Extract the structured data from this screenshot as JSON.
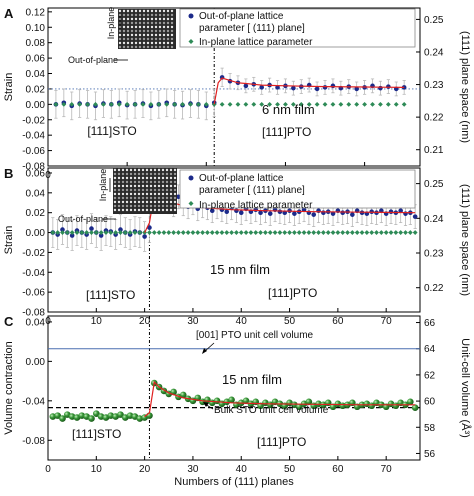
{
  "figure": {
    "panels": [
      {
        "letter": "A",
        "inset_labels": [
          "In-plane",
          "Out-of-plane"
        ],
        "annotations": [
          "[111]STO",
          "6 nm film",
          "[111]PTO"
        ]
      },
      {
        "letter": "B",
        "inset_labels": [
          "In-plane",
          "Out-of-plane"
        ],
        "annotations": [
          "[111]STO",
          "15 nm film",
          "[111]PTO"
        ]
      },
      {
        "letter": "C",
        "inset_labels": [],
        "annotations": [
          "[001] PTO unit cell volume",
          "15 nm film",
          "Bulk STO unit cell volume",
          "[111]STO",
          "[111]PTO"
        ]
      }
    ]
  },
  "chart_data": [
    {
      "type": "scatter",
      "xlabel": "",
      "ylabel": "Strain",
      "y2label": "(111) plane space (nm)",
      "xlim": [
        0,
        47
      ],
      "ylim": [
        -0.08,
        0.125
      ],
      "y2lim": [
        0.205,
        0.2535
      ],
      "xticks": [
        0,
        10,
        20,
        30,
        40
      ],
      "yticks": [
        -0.08,
        -0.06,
        -0.04,
        -0.02,
        0.0,
        0.02,
        0.04,
        0.06,
        0.08,
        0.1,
        0.12
      ],
      "ytick_labels": [
        "-0.08",
        "-0.06",
        "-0.04",
        "-0.02",
        "0.00",
        "0.02",
        "0.04",
        "0.06",
        "0.08",
        "0.10",
        "0.12"
      ],
      "y2ticks": [
        0.21,
        0.22,
        0.23,
        0.24,
        0.25
      ],
      "y2tick_labels": [
        "0.21",
        "0.22",
        "0.23",
        "0.24",
        "0.25"
      ],
      "interface_x": 21,
      "reference_line_y": 0.02,
      "legend_position": "top-right",
      "series": [
        {
          "name": "Out-of-plane lattice parameter [ (111) plane]",
          "marker": "circle",
          "color": "#1c2a8a",
          "x": [
            1,
            2,
            3,
            4,
            5,
            6,
            7,
            8,
            9,
            10,
            11,
            12,
            13,
            14,
            15,
            16,
            17,
            18,
            19,
            20,
            21,
            22,
            23,
            24,
            25,
            26,
            27,
            28,
            29,
            30,
            31,
            32,
            33,
            34,
            35,
            36,
            37,
            38,
            39,
            40,
            41,
            42,
            43,
            44,
            45
          ],
          "values": [
            0.0,
            0.002,
            -0.002,
            0.001,
            0.0,
            -0.002,
            0.001,
            0.0,
            0.002,
            -0.001,
            0.0,
            0.001,
            -0.002,
            0.0,
            0.002,
            0.0,
            -0.001,
            0.001,
            0.0,
            -0.002,
            0.002,
            0.035,
            0.03,
            0.028,
            0.024,
            0.026,
            0.022,
            0.025,
            0.022,
            0.024,
            0.021,
            0.023,
            0.025,
            0.02,
            0.022,
            0.024,
            0.021,
            0.023,
            0.02,
            0.022,
            0.024,
            0.021,
            0.023,
            0.02,
            0.022
          ],
          "errors": [
            0.018,
            0.018,
            0.018,
            0.018,
            0.018,
            0.018,
            0.018,
            0.018,
            0.018,
            0.018,
            0.018,
            0.018,
            0.018,
            0.018,
            0.018,
            0.018,
            0.018,
            0.018,
            0.018,
            0.018,
            0.018,
            0.012,
            0.01,
            0.009,
            0.009,
            0.009,
            0.009,
            0.009,
            0.009,
            0.009,
            0.009,
            0.009,
            0.009,
            0.009,
            0.009,
            0.009,
            0.009,
            0.009,
            0.009,
            0.009,
            0.009,
            0.009,
            0.009,
            0.009,
            0.009
          ]
        },
        {
          "name": "In-plane lattice parameter",
          "marker": "diamond",
          "color": "#2e8b57",
          "x": [
            1,
            2,
            3,
            4,
            5,
            6,
            7,
            8,
            9,
            10,
            11,
            12,
            13,
            14,
            15,
            16,
            17,
            18,
            19,
            20,
            21,
            22,
            23,
            24,
            25,
            26,
            27,
            28,
            29,
            30,
            31,
            32,
            33,
            34,
            35,
            36,
            37,
            38,
            39,
            40,
            41,
            42,
            43,
            44,
            45
          ],
          "values": [
            0.0,
            0.0,
            0.0,
            0.0,
            0.0,
            0.0,
            0.0,
            0.0,
            0.0,
            0.0,
            0.0,
            0.0,
            0.0,
            0.0,
            0.0,
            0.0,
            0.0,
            0.0,
            0.0,
            0.0,
            0.0,
            0.0,
            0.0,
            0.0,
            0.0,
            0.0,
            0.0,
            0.0,
            0.0,
            0.0,
            0.0,
            0.0,
            0.0,
            0.0,
            0.0,
            0.0,
            0.0,
            0.0,
            0.0,
            0.0,
            0.0,
            0.0,
            0.0,
            0.0,
            0.0
          ]
        }
      ],
      "fit_curve": {
        "x": [
          21,
          21.5,
          22,
          23,
          24,
          25,
          27,
          30,
          35,
          40,
          45
        ],
        "values": [
          0.0,
          0.028,
          0.034,
          0.031,
          0.028,
          0.027,
          0.025,
          0.024,
          0.023,
          0.0225,
          0.022
        ]
      }
    },
    {
      "type": "scatter",
      "xlabel": "",
      "ylabel": "Strain",
      "y2label": "(111) plane space (nm)",
      "xlim": [
        0,
        77
      ],
      "ylim": [
        -0.08,
        0.065
      ],
      "y2lim": [
        0.213,
        0.2545
      ],
      "xticks": [
        0,
        10,
        20,
        30,
        40,
        50,
        60,
        70
      ],
      "yticks": [
        -0.08,
        -0.06,
        -0.04,
        -0.02,
        0.0,
        0.02,
        0.04,
        0.06
      ],
      "ytick_labels": [
        "-0.08",
        "-0.06",
        "-0.04",
        "-0.02",
        "0.00",
        "0.02",
        "0.04",
        "0.06"
      ],
      "y2ticks": [
        0.22,
        0.23,
        0.24,
        0.25
      ],
      "y2tick_labels": [
        "0.22",
        "0.23",
        "0.24",
        "0.25"
      ],
      "interface_x": 21,
      "legend_position": "top-right",
      "series": [
        {
          "name": "Out-of-plane lattice parameter [ (111) plane]",
          "marker": "circle",
          "color": "#1c2a8a",
          "x": [
            1,
            2,
            3,
            4,
            5,
            6,
            7,
            8,
            9,
            10,
            11,
            12,
            13,
            14,
            15,
            16,
            17,
            18,
            19,
            20,
            21,
            22,
            23,
            24,
            25,
            26,
            27,
            28,
            29,
            30,
            31,
            32,
            33,
            34,
            35,
            36,
            37,
            38,
            39,
            40,
            41,
            42,
            43,
            44,
            45,
            46,
            47,
            48,
            49,
            50,
            51,
            52,
            53,
            54,
            55,
            56,
            57,
            58,
            59,
            60,
            61,
            62,
            63,
            64,
            65,
            66,
            67,
            68,
            69,
            70,
            71,
            72,
            73,
            74,
            75,
            76
          ],
          "values": [
            0.0,
            -0.002,
            0.003,
            0.0,
            -0.003,
            0.002,
            0.0,
            -0.002,
            0.004,
            0.0,
            -0.003,
            0.002,
            0.001,
            -0.002,
            0.003,
            0.0,
            -0.002,
            0.001,
            0.0,
            -0.004,
            0.005,
            0.04,
            0.035,
            0.033,
            0.031,
            0.028,
            0.036,
            0.029,
            0.026,
            0.03,
            0.024,
            0.027,
            0.025,
            0.022,
            0.026,
            0.023,
            0.021,
            0.025,
            0.022,
            0.02,
            0.024,
            0.021,
            0.023,
            0.02,
            0.022,
            0.019,
            0.023,
            0.021,
            0.02,
            0.022,
            0.019,
            0.021,
            0.023,
            0.02,
            0.018,
            0.022,
            0.02,
            0.021,
            0.019,
            0.022,
            0.02,
            0.021,
            0.018,
            0.022,
            0.02,
            0.019,
            0.021,
            0.02,
            0.022,
            0.019,
            0.021,
            0.02,
            0.022,
            0.019,
            0.02,
            0.016
          ],
          "errors": [
            0.015,
            0.015,
            0.015,
            0.015,
            0.015,
            0.015,
            0.015,
            0.015,
            0.015,
            0.015,
            0.015,
            0.015,
            0.015,
            0.015,
            0.015,
            0.015,
            0.015,
            0.015,
            0.015,
            0.015,
            0.015,
            0.012,
            0.012,
            0.012,
            0.012,
            0.012,
            0.012,
            0.012,
            0.012,
            0.012,
            0.012,
            0.012,
            0.012,
            0.012,
            0.012,
            0.012,
            0.012,
            0.012,
            0.012,
            0.012,
            0.012,
            0.012,
            0.012,
            0.012,
            0.012,
            0.012,
            0.012,
            0.012,
            0.012,
            0.012,
            0.012,
            0.012,
            0.012,
            0.012,
            0.012,
            0.012,
            0.012,
            0.012,
            0.012,
            0.012,
            0.012,
            0.012,
            0.012,
            0.012,
            0.012,
            0.012,
            0.012,
            0.012,
            0.012,
            0.012,
            0.012,
            0.012,
            0.012,
            0.012,
            0.012,
            0.012
          ]
        },
        {
          "name": "In-plane lattice parameter",
          "marker": "diamond",
          "color": "#2e8b57",
          "x": [
            1,
            2,
            3,
            4,
            5,
            6,
            7,
            8,
            9,
            10,
            11,
            12,
            13,
            14,
            15,
            16,
            17,
            18,
            19,
            20,
            21,
            22,
            23,
            24,
            25,
            26,
            27,
            28,
            29,
            30,
            31,
            32,
            33,
            34,
            35,
            36,
            37,
            38,
            39,
            40,
            41,
            42,
            43,
            44,
            45,
            46,
            47,
            48,
            49,
            50,
            51,
            52,
            53,
            54,
            55,
            56,
            57,
            58,
            59,
            60,
            61,
            62,
            63,
            64,
            65,
            66,
            67,
            68,
            69,
            70,
            71,
            72,
            73,
            74,
            75,
            76
          ],
          "values": [
            0.0,
            0.0,
            0.0,
            0.0,
            0.0,
            0.0,
            0.0,
            0.0,
            0.0,
            0.0,
            0.0,
            0.0,
            0.0,
            0.0,
            0.0,
            0.0,
            0.0,
            0.0,
            0.0,
            0.0,
            0.0,
            0.0,
            0.0,
            0.0,
            0.0,
            0.0,
            0.0,
            0.0,
            0.0,
            0.0,
            0.0,
            0.0,
            0.0,
            0.0,
            0.0,
            0.0,
            0.0,
            0.0,
            0.0,
            0.0,
            0.0,
            0.0,
            0.0,
            0.0,
            0.0,
            0.0,
            0.0,
            0.0,
            0.0,
            0.0,
            0.0,
            0.0,
            0.0,
            0.0,
            0.0,
            0.0,
            0.0,
            0.0,
            0.0,
            0.0,
            0.0,
            0.0,
            0.0,
            0.0,
            0.0,
            0.0,
            0.0,
            0.0,
            0.0,
            0.0,
            0.0,
            0.0,
            0.0,
            0.0,
            0.0,
            0.0
          ]
        }
      ],
      "fit_curve": {
        "x": [
          20,
          21,
          22,
          23,
          25,
          28,
          32,
          38,
          45,
          55,
          65,
          76
        ],
        "values": [
          0.0,
          0.01,
          0.039,
          0.035,
          0.031,
          0.027,
          0.025,
          0.023,
          0.022,
          0.021,
          0.0205,
          0.02
        ]
      }
    },
    {
      "type": "scatter",
      "xlabel": "Numbers of (111) planes",
      "ylabel": "Volume contraction",
      "y2label": "Unit-cell volume (Å³)",
      "xlim": [
        0,
        77
      ],
      "ylim": [
        -0.1,
        0.046
      ],
      "y2lim": [
        55.5,
        66.5
      ],
      "xticks": [
        0,
        10,
        20,
        30,
        40,
        50,
        60,
        70
      ],
      "yticks": [
        -0.08,
        -0.04,
        0.0,
        0.04
      ],
      "ytick_labels": [
        "-0.08",
        "-0.04",
        "0.00",
        "0.04"
      ],
      "y2ticks": [
        56,
        58,
        60,
        62,
        64,
        66
      ],
      "y2tick_labels": [
        "56",
        "58",
        "60",
        "62",
        "64",
        "66"
      ],
      "interface_x": 21,
      "reference_lines": [
        {
          "label": "[001] PTO unit cell volume",
          "y2": 64.0
        },
        {
          "label": "Bulk STO unit cell volume",
          "y2": 59.5
        }
      ],
      "series": [
        {
          "name": "",
          "marker": "sphere",
          "color": "#3a9a3a",
          "x": [
            1,
            2,
            3,
            4,
            5,
            6,
            7,
            8,
            9,
            10,
            11,
            12,
            13,
            14,
            15,
            16,
            17,
            18,
            19,
            20,
            21,
            22,
            23,
            24,
            25,
            26,
            27,
            28,
            29,
            30,
            31,
            32,
            33,
            34,
            35,
            36,
            37,
            38,
            39,
            40,
            41,
            42,
            43,
            44,
            45,
            46,
            47,
            48,
            49,
            50,
            51,
            52,
            53,
            54,
            55,
            56,
            57,
            58,
            59,
            60,
            61,
            62,
            63,
            64,
            65,
            66,
            67,
            68,
            69,
            70,
            71,
            72,
            73,
            74,
            75,
            76
          ],
          "values": [
            -0.056,
            -0.055,
            -0.058,
            -0.054,
            -0.056,
            -0.057,
            -0.055,
            -0.056,
            -0.058,
            -0.053,
            -0.056,
            -0.057,
            -0.055,
            -0.056,
            -0.054,
            -0.057,
            -0.055,
            -0.056,
            -0.058,
            -0.057,
            -0.055,
            -0.022,
            -0.026,
            -0.03,
            -0.033,
            -0.031,
            -0.036,
            -0.034,
            -0.038,
            -0.04,
            -0.037,
            -0.041,
            -0.039,
            -0.042,
            -0.04,
            -0.043,
            -0.041,
            -0.039,
            -0.044,
            -0.042,
            -0.04,
            -0.043,
            -0.041,
            -0.045,
            -0.042,
            -0.044,
            -0.041,
            -0.043,
            -0.045,
            -0.042,
            -0.044,
            -0.046,
            -0.043,
            -0.041,
            -0.045,
            -0.043,
            -0.044,
            -0.042,
            -0.046,
            -0.043,
            -0.045,
            -0.044,
            -0.042,
            -0.046,
            -0.044,
            -0.043,
            -0.045,
            -0.042,
            -0.044,
            -0.046,
            -0.043,
            -0.045,
            -0.042,
            -0.044,
            -0.041,
            -0.047
          ]
        }
      ],
      "fit_curve": {
        "x": [
          20,
          21,
          22,
          23,
          25,
          28,
          32,
          38,
          45,
          55,
          65,
          76
        ],
        "values": [
          -0.056,
          -0.052,
          -0.021,
          -0.026,
          -0.032,
          -0.037,
          -0.04,
          -0.042,
          -0.043,
          -0.0435,
          -0.044,
          -0.044
        ]
      }
    }
  ]
}
